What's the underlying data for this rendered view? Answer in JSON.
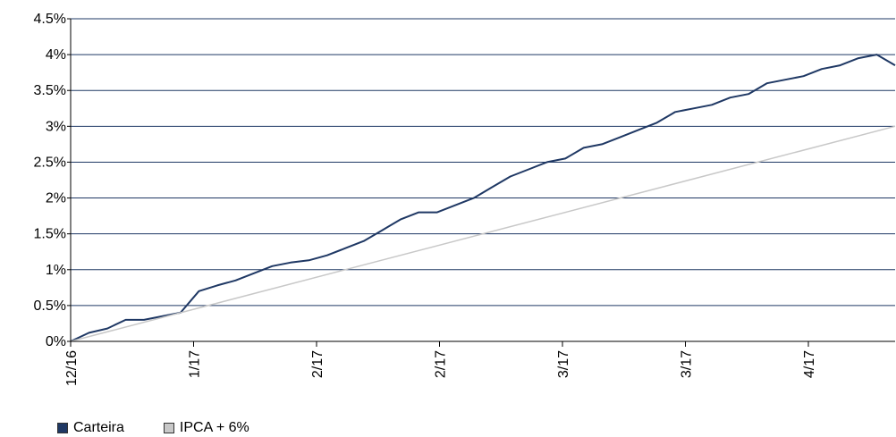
{
  "chart_data": {
    "type": "line",
    "x_labels": [
      "12/16",
      "1/17",
      "2/17",
      "2/17",
      "3/17",
      "3/17",
      "4/17"
    ],
    "y_ticks": [
      "0%",
      "0.5%",
      "1%",
      "1.5%",
      "2%",
      "2.5%",
      "3%",
      "3.5%",
      "4%",
      "4.5%"
    ],
    "ylim": [
      0,
      4.5
    ],
    "grid": true,
    "legend_position": "bottom-left",
    "series": [
      {
        "name": "Carteira",
        "color": "#1f3864",
        "values": [
          0,
          0.12,
          0.18,
          0.3,
          0.3,
          0.35,
          0.4,
          0.7,
          0.78,
          0.85,
          0.95,
          1.05,
          1.1,
          1.13,
          1.2,
          1.3,
          1.4,
          1.55,
          1.7,
          1.8,
          1.8,
          1.9,
          2.0,
          2.15,
          2.3,
          2.4,
          2.5,
          2.55,
          2.7,
          2.75,
          2.85,
          2.95,
          3.05,
          3.2,
          3.25,
          3.3,
          3.4,
          3.45,
          3.6,
          3.65,
          3.7,
          3.8,
          3.85,
          3.95,
          4.0,
          3.85
        ]
      },
      {
        "name": "IPCA + 6%",
        "color": "#c8c8c8",
        "values": [
          0,
          3.0
        ]
      }
    ]
  }
}
